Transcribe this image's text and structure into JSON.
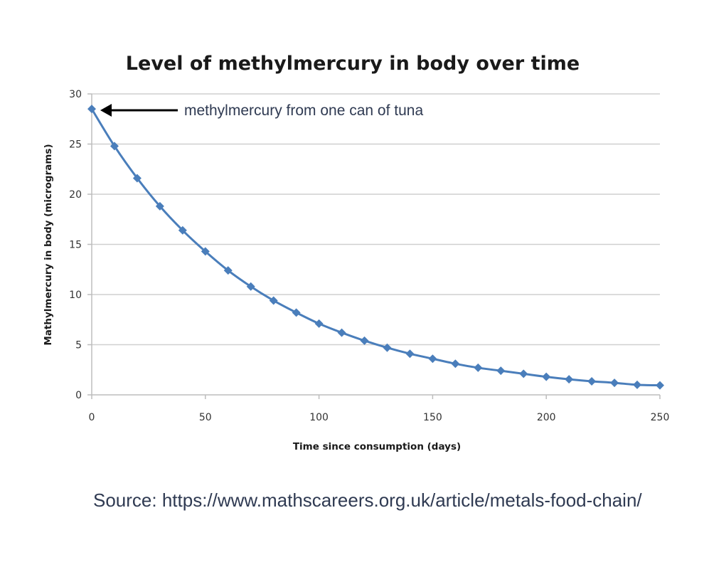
{
  "chart_data": {
    "type": "line",
    "title": "Level of methylmercury in body over time",
    "xlabel": "Time since consumption (days)",
    "ylabel": "Mathylmercury in body (micrograms)",
    "xlim": [
      0,
      250
    ],
    "ylim": [
      0,
      30
    ],
    "xticks": [
      0,
      50,
      100,
      150,
      200,
      250
    ],
    "yticks": [
      0,
      5,
      10,
      15,
      20,
      25,
      30
    ],
    "grid": "horizontal",
    "legend": "none",
    "color": "#4a7ebb",
    "marker": "diamond",
    "series": [
      {
        "x": [
          0,
          10,
          20,
          30,
          40,
          50,
          60,
          70,
          80,
          90,
          100,
          110,
          120,
          130,
          140,
          150,
          160,
          170,
          180,
          190,
          200,
          210,
          220,
          230,
          240,
          250
        ],
        "y": [
          28.5,
          24.8,
          21.6,
          18.8,
          16.4,
          14.3,
          12.4,
          10.8,
          9.4,
          8.2,
          7.1,
          6.2,
          5.4,
          4.7,
          4.1,
          3.6,
          3.1,
          2.7,
          2.4,
          2.1,
          1.8,
          1.55,
          1.35,
          1.2,
          1.0,
          0.95
        ]
      }
    ],
    "annotation": {
      "text": "methylmercury from one can of tuna",
      "target": {
        "x": 0,
        "y": 28.5
      }
    }
  },
  "source": {
    "text": "Source: https://www.mathscareers.org.uk/article/metals-food-chain/"
  }
}
